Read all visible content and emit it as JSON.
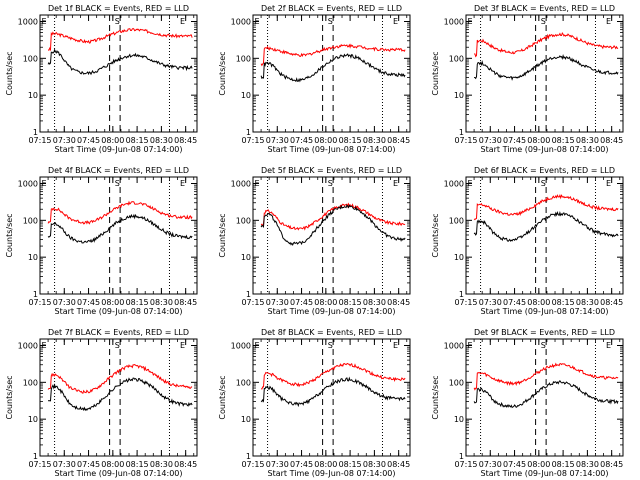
{
  "chart_data": [
    {
      "type": "line",
      "title": "Det 1f BLACK = Events, RED = LLD",
      "xlabel": "Start Time (09-Jun-08 07:14:00)",
      "ylabel": "Counts/sec",
      "markers": [
        "E",
        "S",
        "E"
      ],
      "black_peak": 120,
      "red_peak": 600,
      "red_base": 400,
      "black_base": 55,
      "black_start": 200,
      "red_start": 500
    },
    {
      "type": "line",
      "title": "Det 2f BLACK = Events, RED = LLD",
      "xlabel": "Start Time (09-Jun-08 07:14:00)",
      "ylabel": "Counts/sec",
      "markers": [
        "E",
        "S",
        "E"
      ],
      "black_peak": 120,
      "red_peak": 220,
      "red_base": 170,
      "black_base": 35,
      "black_start": 90,
      "red_start": 200
    },
    {
      "type": "line",
      "title": "Det 3f BLACK = Events, RED = LLD",
      "xlabel": "Start Time (09-Jun-08 07:14:00)",
      "ylabel": "Counts/sec",
      "markers": [
        "E",
        "S",
        "E"
      ],
      "black_peak": 110,
      "red_peak": 450,
      "red_base": 200,
      "black_base": 40,
      "black_start": 90,
      "red_start": 350
    },
    {
      "type": "line",
      "title": "Det 4f BLACK = Events, RED = LLD",
      "xlabel": "Start Time (09-Jun-08 07:14:00)",
      "ylabel": "Counts/sec",
      "markers": [
        "E",
        "S",
        "E"
      ],
      "black_peak": 130,
      "red_peak": 300,
      "red_base": 120,
      "black_base": 35,
      "black_start": 100,
      "red_start": 250
    },
    {
      "type": "line",
      "title": "Det 5f BLACK = Events, RED = LLD",
      "xlabel": "Start Time (09-Jun-08 07:14:00)",
      "ylabel": "Counts/sec",
      "markers": [
        "E",
        "S",
        "E"
      ],
      "black_peak": 240,
      "red_peak": 260,
      "red_base": 80,
      "black_base": 30,
      "black_start": 200,
      "red_start": 220
    },
    {
      "type": "line",
      "title": "Det 6f BLACK = Events, RED = LLD",
      "xlabel": "Start Time (09-Jun-08 07:14:00)",
      "ylabel": "Counts/sec",
      "markers": [
        "E",
        "S",
        "E"
      ],
      "black_peak": 150,
      "red_peak": 450,
      "red_base": 200,
      "black_base": 40,
      "black_start": 120,
      "red_start": 300
    },
    {
      "type": "line",
      "title": "Det 7f BLACK = Events, RED = LLD",
      "xlabel": "Start Time (09-Jun-08 07:14:00)",
      "ylabel": "Counts/sec",
      "markers": [
        "E",
        "S",
        "E"
      ],
      "black_peak": 120,
      "red_peak": 280,
      "red_base": 75,
      "black_base": 25,
      "black_start": 100,
      "red_start": 200
    },
    {
      "type": "line",
      "title": "Det 8f BLACK = Events, RED = LLD",
      "xlabel": "Start Time (09-Jun-08 07:14:00)",
      "ylabel": "Counts/sec",
      "markers": [
        "E",
        "S",
        "E"
      ],
      "black_peak": 120,
      "red_peak": 300,
      "red_base": 120,
      "black_base": 35,
      "black_start": 90,
      "red_start": 200
    },
    {
      "type": "line",
      "title": "Det 9f BLACK = Events, RED = LLD",
      "xlabel": "Start Time (09-Jun-08 07:14:00)",
      "ylabel": "Counts/sec",
      "markers": [
        "E",
        "S",
        "E"
      ],
      "black_peak": 100,
      "red_peak": 300,
      "red_base": 130,
      "black_base": 30,
      "black_start": 80,
      "red_start": 200
    }
  ],
  "axes": {
    "y_ticks": [
      1,
      10,
      100,
      1000
    ],
    "y_tick_labels": [
      "1",
      "10",
      "100",
      "1000"
    ],
    "ylim": [
      1,
      1500
    ],
    "x_ticks": [
      0,
      15,
      30,
      45,
      60,
      75,
      90
    ],
    "x_tick_labels": [
      "07:15",
      "07:30",
      "07:45",
      "08:00",
      "08:15",
      "08:30",
      "08:45"
    ],
    "xlim_minutes_after_0715": [
      0,
      97
    ],
    "dotted_lines": [
      9,
      80
    ],
    "dashed_lines": [
      43,
      49.5
    ]
  },
  "colors": {
    "events": "#000000",
    "lld": "#ff0000"
  }
}
